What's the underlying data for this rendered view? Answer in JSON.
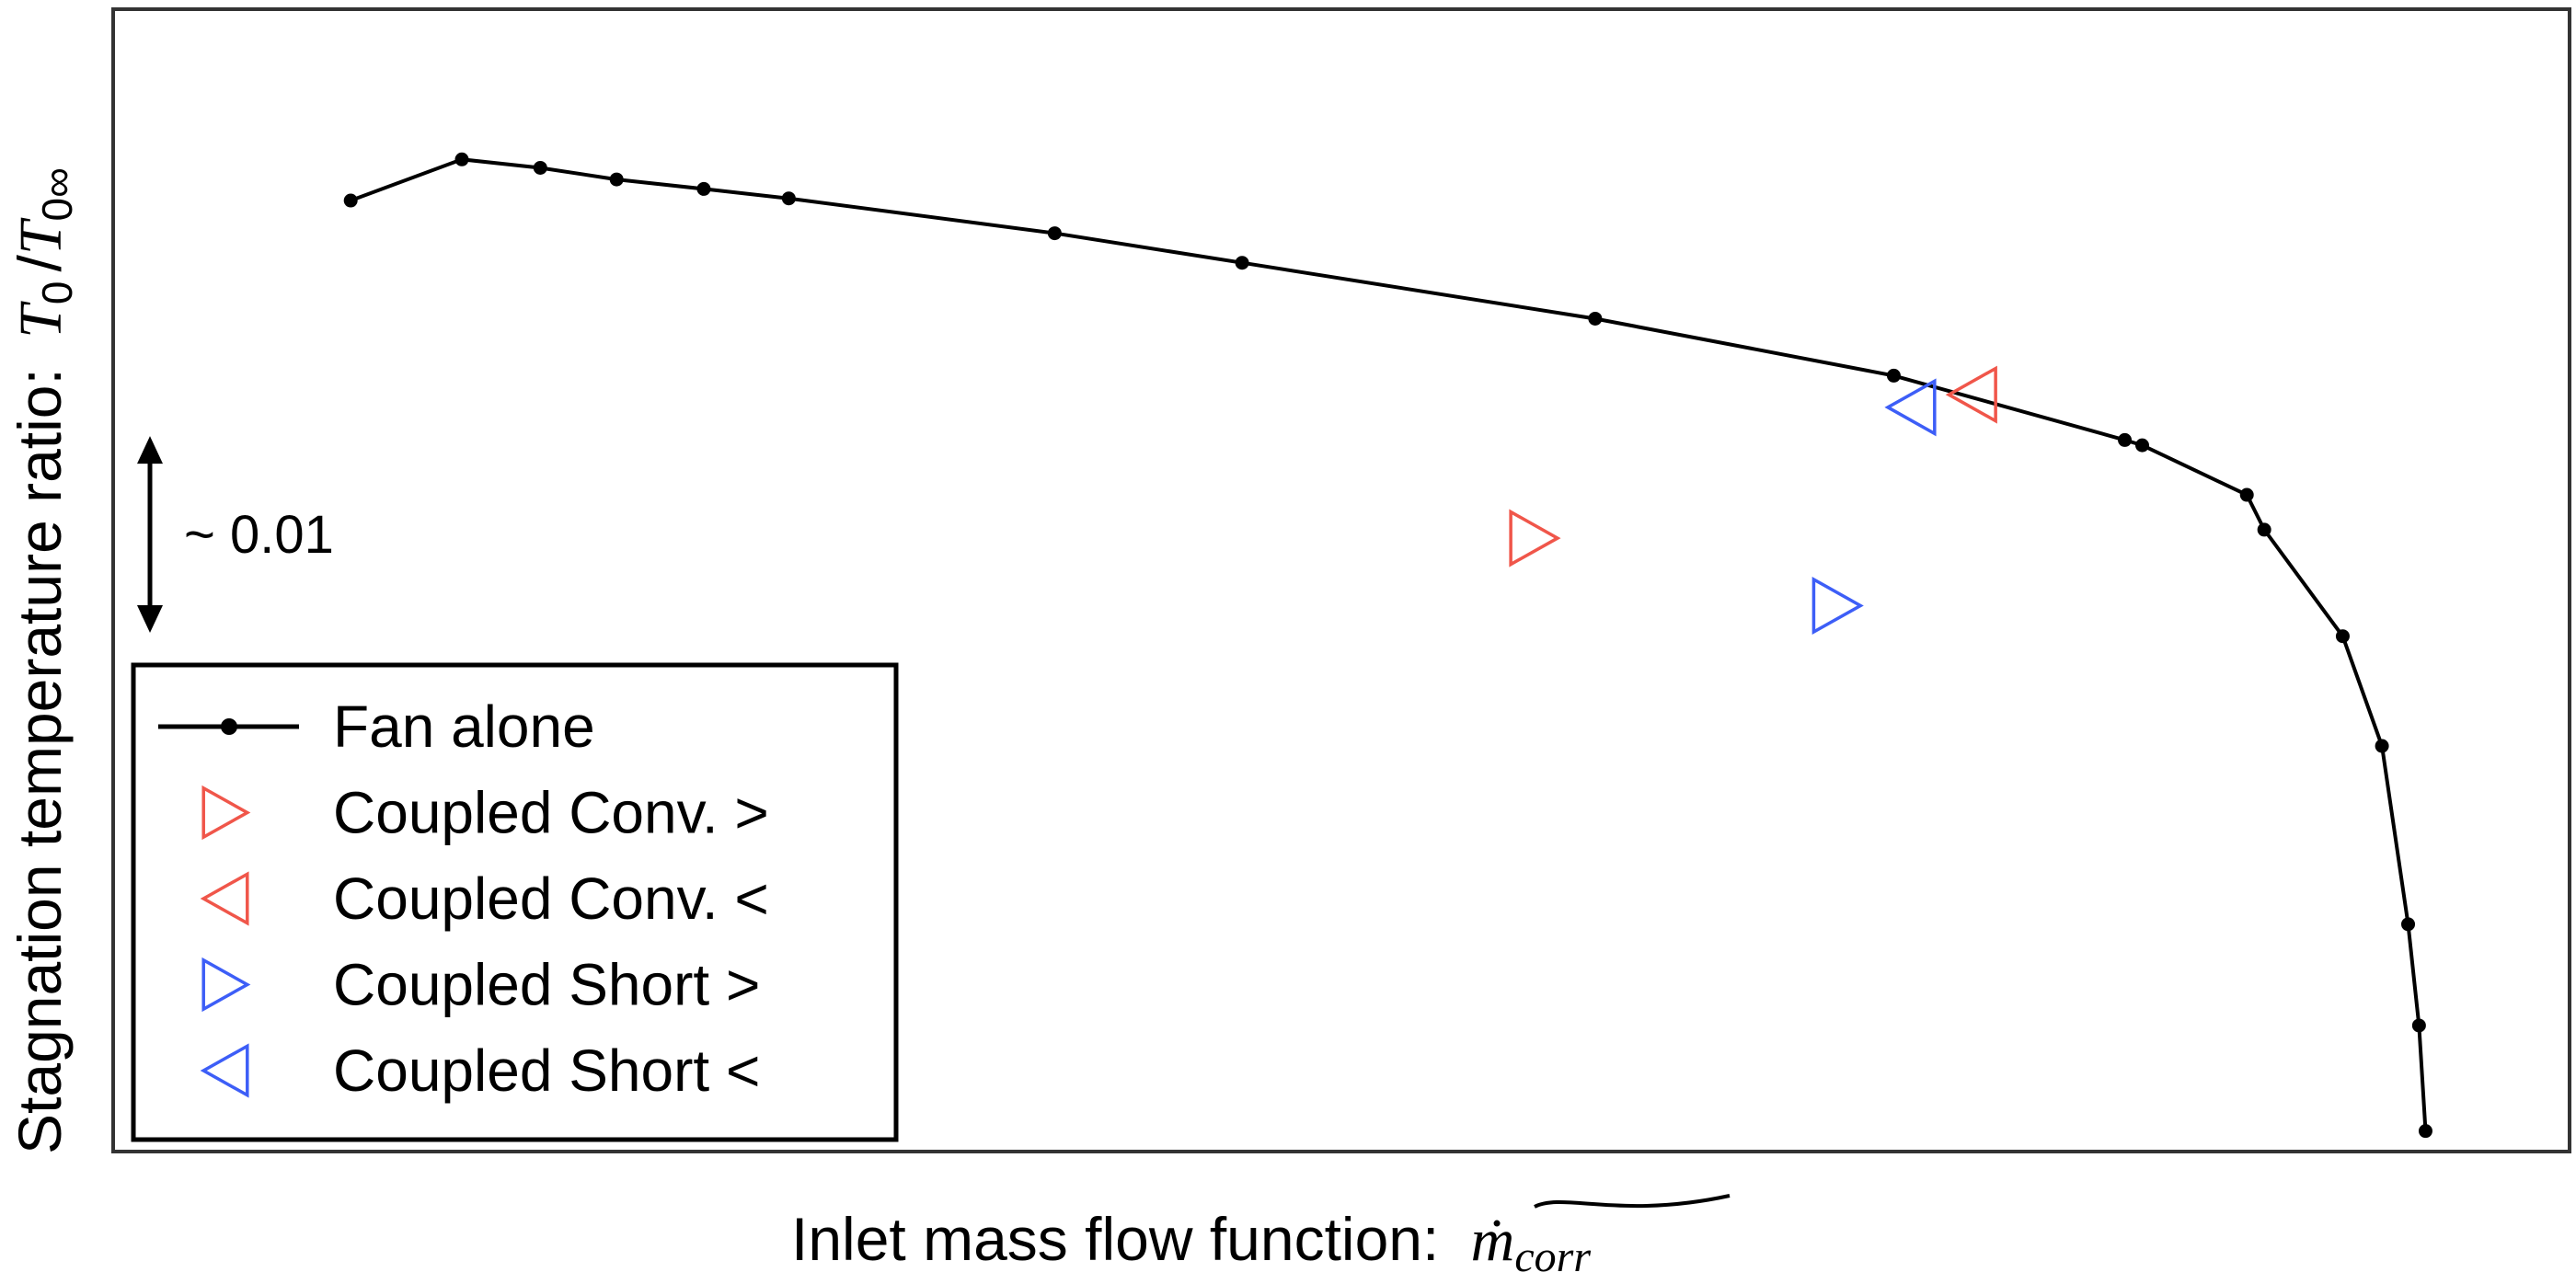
{
  "chart_data": {
    "type": "line",
    "title": "",
    "xlabel": "Inlet mass flow function:",
    "xlabel_symbol": "ṁ",
    "xlabel_subscript": "corr",
    "ylabel": "Stagnation temperature ratio:",
    "ylabel_symbol_num": "T",
    "ylabel_sub_num": "0",
    "ylabel_symbol_den": "T",
    "ylabel_sub_den": "0∞",
    "xlim": [
      0,
      100
    ],
    "ylim": [
      0,
      100
    ],
    "grid": false,
    "axis_ticks": false,
    "scale_indicator": {
      "label": "~ 0.01",
      "span": [
        49.0,
        65.9
      ]
    },
    "legend": {
      "placement": "bottom-left"
    },
    "series": [
      {
        "name": "Fan alone",
        "type": "line",
        "color": "#000000",
        "marker": "circle",
        "points": [
          [
            5.2,
            89.1
          ],
          [
            10.3,
            93.0
          ],
          [
            13.9,
            92.2
          ],
          [
            17.4,
            91.1
          ],
          [
            21.4,
            90.2
          ],
          [
            25.3,
            89.3
          ],
          [
            37.5,
            86.0
          ],
          [
            46.1,
            83.2
          ],
          [
            62.3,
            77.9
          ],
          [
            76.0,
            72.5
          ],
          [
            86.6,
            66.4
          ],
          [
            87.4,
            65.9
          ],
          [
            92.2,
            61.2
          ],
          [
            93.0,
            57.9
          ],
          [
            96.6,
            47.8
          ],
          [
            98.4,
            37.4
          ],
          [
            99.6,
            20.5
          ],
          [
            100.1,
            10.9
          ],
          [
            100.4,
            0.9
          ]
        ]
      },
      {
        "name": "Coupled Conv. >",
        "type": "scatter",
        "color": "#f0564a",
        "marker": "triangle-right",
        "points": [
          [
            59.5,
            57.1
          ]
        ]
      },
      {
        "name": "Coupled Conv. <",
        "type": "scatter",
        "color": "#f0564a",
        "marker": "triangle-left",
        "points": [
          [
            79.6,
            70.7
          ]
        ]
      },
      {
        "name": "Coupled Short >",
        "type": "scatter",
        "color": "#3d5ef7",
        "marker": "triangle-right",
        "points": [
          [
            73.4,
            50.7
          ]
        ]
      },
      {
        "name": "Coupled Short <",
        "type": "scatter",
        "color": "#3d5ef7",
        "marker": "triangle-left",
        "points": [
          [
            76.8,
            69.5
          ]
        ]
      }
    ]
  }
}
